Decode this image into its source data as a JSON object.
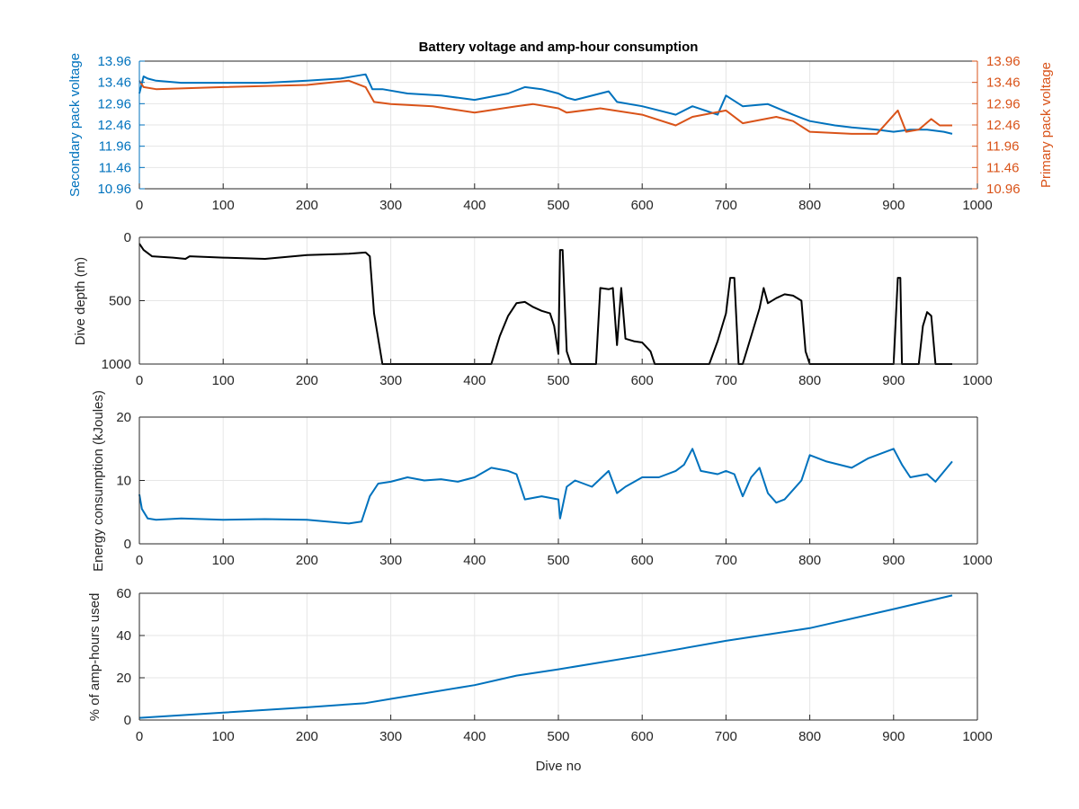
{
  "figure": {
    "title": "Battery voltage and amp-hour consumption",
    "xlabel": "Dive no"
  },
  "colors": {
    "blue": "#0072BD",
    "orange": "#D95319",
    "black": "#000000",
    "grid": "#e6e6e6",
    "axis": "#262626"
  },
  "panels": {
    "voltage": {
      "ylabel_left": "Secondary pack voltage",
      "ylabel_right": "Primary pack voltage"
    },
    "depth": {
      "ylabel": "Dive depth (m)"
    },
    "energy": {
      "ylabel": "Energy consumption (kJoules)"
    },
    "amphours": {
      "ylabel": "% of amp-hours used"
    }
  },
  "chart_data": [
    {
      "type": "line",
      "title": "Battery voltage and amp-hour consumption",
      "xlabel": "",
      "ylabel": "Secondary pack voltage",
      "ylabel_right": "Primary pack voltage",
      "xlim": [
        0,
        1000
      ],
      "ylim": [
        10.96,
        13.96
      ],
      "yticks": [
        10.96,
        11.46,
        11.96,
        12.46,
        12.96,
        13.46,
        13.96
      ],
      "ytick_labels": [
        "10.96",
        "11.46",
        "11.96",
        "12.46",
        "12.96",
        "13.46",
        "13.96"
      ],
      "xticks": [
        0,
        100,
        200,
        300,
        400,
        500,
        600,
        700,
        800,
        900,
        1000
      ],
      "grid": true,
      "series": [
        {
          "name": "Secondary pack voltage",
          "color": "#0072BD",
          "x": [
            0,
            5,
            10,
            20,
            50,
            100,
            150,
            200,
            240,
            270,
            278,
            290,
            320,
            360,
            400,
            440,
            460,
            480,
            500,
            510,
            520,
            560,
            570,
            600,
            640,
            660,
            690,
            700,
            720,
            750,
            780,
            800,
            830,
            850,
            880,
            900,
            920,
            940,
            960,
            970
          ],
          "y": [
            13.2,
            13.6,
            13.55,
            13.5,
            13.45,
            13.45,
            13.45,
            13.5,
            13.55,
            13.65,
            13.3,
            13.3,
            13.2,
            13.15,
            13.05,
            13.2,
            13.35,
            13.3,
            13.2,
            13.1,
            13.05,
            13.25,
            13.0,
            12.9,
            12.7,
            12.9,
            12.7,
            13.15,
            12.9,
            12.95,
            12.7,
            12.55,
            12.45,
            12.4,
            12.35,
            12.3,
            12.35,
            12.35,
            12.3,
            12.25
          ]
        },
        {
          "name": "Primary pack voltage",
          "color": "#D95319",
          "x": [
            0,
            5,
            20,
            100,
            200,
            250,
            270,
            280,
            300,
            350,
            400,
            450,
            470,
            500,
            510,
            550,
            600,
            640,
            660,
            700,
            720,
            760,
            780,
            800,
            850,
            880,
            905,
            915,
            930,
            945,
            955,
            970
          ],
          "y": [
            13.5,
            13.35,
            13.3,
            13.35,
            13.4,
            13.5,
            13.35,
            13.0,
            12.95,
            12.9,
            12.75,
            12.9,
            12.95,
            12.85,
            12.75,
            12.85,
            12.7,
            12.45,
            12.65,
            12.8,
            12.5,
            12.65,
            12.55,
            12.3,
            12.25,
            12.25,
            12.8,
            12.3,
            12.35,
            12.6,
            12.45,
            12.45
          ]
        }
      ]
    },
    {
      "type": "line",
      "xlabel": "",
      "ylabel": "Dive depth (m)",
      "xlim": [
        0,
        1000
      ],
      "ylim": [
        1000,
        0
      ],
      "yticks": [
        0,
        500,
        1000
      ],
      "xticks": [
        0,
        100,
        200,
        300,
        400,
        500,
        600,
        700,
        800,
        900,
        1000
      ],
      "grid": true,
      "series": [
        {
          "color": "#000000",
          "x": [
            0,
            5,
            15,
            40,
            55,
            60,
            100,
            150,
            200,
            250,
            270,
            275,
            280,
            290,
            300,
            350,
            400,
            420,
            430,
            440,
            450,
            460,
            470,
            480,
            490,
            495,
            500,
            502,
            505,
            508,
            510,
            515,
            545,
            550,
            560,
            565,
            570,
            575,
            580,
            590,
            600,
            610,
            615,
            620,
            680,
            690,
            700,
            705,
            710,
            715,
            720,
            730,
            740,
            745,
            750,
            760,
            770,
            780,
            790,
            795,
            800,
            850,
            900,
            905,
            908,
            910,
            912,
            915,
            930,
            935,
            940,
            945,
            950,
            955,
            970
          ],
          "y": [
            50,
            100,
            150,
            160,
            170,
            150,
            160,
            170,
            140,
            130,
            120,
            150,
            600,
            1000,
            1000,
            1000,
            1000,
            1000,
            780,
            620,
            520,
            510,
            550,
            580,
            600,
            700,
            920,
            100,
            100,
            600,
            900,
            1000,
            1000,
            400,
            410,
            400,
            850,
            400,
            800,
            820,
            830,
            900,
            1000,
            1000,
            1000,
            820,
            600,
            320,
            320,
            1000,
            1000,
            780,
            560,
            400,
            520,
            480,
            450,
            460,
            500,
            900,
            1000,
            1000,
            1000,
            320,
            320,
            1000,
            1000,
            1000,
            1000,
            700,
            590,
            620,
            1000,
            1000,
            1000
          ]
        }
      ]
    },
    {
      "type": "line",
      "xlabel": "",
      "ylabel": "Energy consumption (kJoules)",
      "xlim": [
        0,
        1000
      ],
      "ylim": [
        0,
        20
      ],
      "yticks": [
        0,
        10,
        20
      ],
      "xticks": [
        0,
        100,
        200,
        300,
        400,
        500,
        600,
        700,
        800,
        900,
        1000
      ],
      "grid": true,
      "series": [
        {
          "color": "#0072BD",
          "x": [
            0,
            3,
            10,
            20,
            50,
            100,
            150,
            200,
            250,
            265,
            275,
            285,
            300,
            320,
            340,
            360,
            380,
            400,
            420,
            440,
            450,
            460,
            480,
            500,
            502,
            510,
            520,
            540,
            560,
            570,
            580,
            600,
            620,
            640,
            650,
            660,
            670,
            690,
            700,
            710,
            720,
            730,
            740,
            750,
            760,
            770,
            790,
            800,
            820,
            850,
            870,
            900,
            910,
            920,
            940,
            950,
            970
          ],
          "y": [
            7.8,
            5.5,
            4.0,
            3.8,
            4.0,
            3.8,
            3.9,
            3.8,
            3.2,
            3.5,
            7.5,
            9.5,
            9.8,
            10.5,
            10.0,
            10.2,
            9.8,
            10.5,
            12.0,
            11.5,
            11.0,
            7.0,
            7.5,
            7.0,
            4.0,
            9.0,
            10.0,
            9.0,
            11.5,
            8.0,
            9.0,
            10.5,
            10.5,
            11.5,
            12.5,
            15.0,
            11.5,
            11.0,
            11.5,
            11.0,
            7.5,
            10.5,
            12.0,
            8.0,
            6.5,
            7.0,
            10.0,
            14.0,
            13.0,
            12.0,
            13.5,
            15.0,
            12.5,
            10.5,
            11.0,
            9.8,
            13.0
          ]
        }
      ]
    },
    {
      "type": "line",
      "xlabel": "Dive no",
      "ylabel": "% of amp-hours used",
      "xlim": [
        0,
        1000
      ],
      "ylim": [
        0,
        60
      ],
      "yticks": [
        0,
        20,
        40,
        60
      ],
      "xticks": [
        0,
        100,
        200,
        300,
        400,
        500,
        600,
        700,
        800,
        900,
        1000
      ],
      "grid": true,
      "series": [
        {
          "color": "#0072BD",
          "x": [
            0,
            100,
            200,
            270,
            300,
            400,
            450,
            500,
            600,
            700,
            800,
            900,
            970
          ],
          "y": [
            1,
            3.5,
            6,
            8,
            10,
            16.5,
            21,
            24,
            30.5,
            37.5,
            43.5,
            52.5,
            59
          ]
        }
      ]
    }
  ]
}
